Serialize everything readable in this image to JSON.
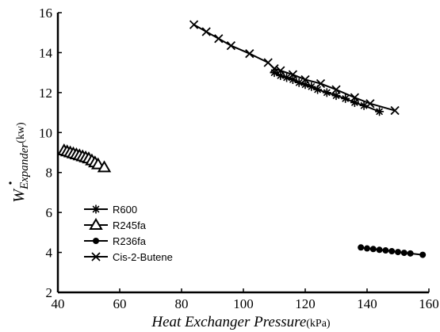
{
  "chart_data": {
    "type": "scatter",
    "xlabel": {
      "main": "Heat Exchanger Pressure",
      "unit": "(kPa)"
    },
    "ylabel": {
      "base": "W",
      "subscript": "Expander",
      "unit": "(kw)"
    },
    "xlim": [
      40,
      160
    ],
    "ylim": [
      2,
      16
    ],
    "xticks": [
      40,
      60,
      80,
      100,
      120,
      140,
      160
    ],
    "yticks": [
      2,
      4,
      6,
      8,
      10,
      12,
      14,
      16
    ],
    "grid": false,
    "legend_position": "lower-left",
    "series": [
      {
        "name": "R600",
        "marker": "asterisk",
        "x": [
          110,
          112,
          114,
          116,
          118,
          120,
          122,
          124,
          127,
          130,
          133,
          136,
          139,
          144
        ],
        "y": [
          13.0,
          12.85,
          12.75,
          12.65,
          12.5,
          12.4,
          12.3,
          12.15,
          12.0,
          11.85,
          11.7,
          11.5,
          11.35,
          11.05
        ]
      },
      {
        "name": "R245fa",
        "marker": "triangle",
        "x": [
          42,
          43,
          44,
          45,
          46,
          47,
          48,
          49,
          50,
          51,
          52,
          53,
          55
        ],
        "y": [
          9.1,
          9.05,
          9.0,
          8.95,
          8.9,
          8.85,
          8.8,
          8.75,
          8.7,
          8.6,
          8.5,
          8.4,
          8.25
        ]
      },
      {
        "name": "R236fa",
        "marker": "circle",
        "x": [
          138,
          140,
          142,
          144,
          146,
          148,
          150,
          152,
          154,
          158
        ],
        "y": [
          4.25,
          4.2,
          4.17,
          4.13,
          4.1,
          4.06,
          4.02,
          3.98,
          3.95,
          3.88
        ]
      },
      {
        "name": "Cis-2-Butene",
        "marker": "x",
        "x": [
          84,
          88,
          92,
          96,
          102,
          108,
          110,
          112,
          116,
          120,
          125,
          130,
          136,
          141,
          149
        ],
        "y": [
          15.4,
          15.05,
          14.7,
          14.35,
          13.95,
          13.5,
          13.2,
          13.1,
          12.9,
          12.65,
          12.45,
          12.15,
          11.75,
          11.45,
          11.1
        ]
      }
    ]
  }
}
